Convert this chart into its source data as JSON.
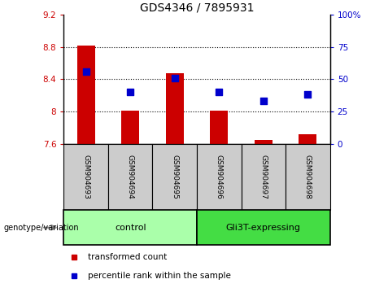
{
  "title": "GDS4346 / 7895931",
  "samples": [
    "GSM904693",
    "GSM904694",
    "GSM904695",
    "GSM904696",
    "GSM904697",
    "GSM904698"
  ],
  "bar_values": [
    8.82,
    8.01,
    8.47,
    8.01,
    7.65,
    7.72
  ],
  "bar_bottom": 7.6,
  "percentile_values": [
    56,
    40,
    51,
    40,
    33,
    38
  ],
  "bar_color": "#cc0000",
  "dot_color": "#0000cc",
  "ylim_left": [
    7.6,
    9.2
  ],
  "ylim_right": [
    0,
    100
  ],
  "yticks_left": [
    7.6,
    8.0,
    8.4,
    8.8,
    9.2
  ],
  "ytick_labels_left": [
    "7.6",
    "8",
    "8.4",
    "8.8",
    "9.2"
  ],
  "yticks_right": [
    0,
    25,
    50,
    75,
    100
  ],
  "ytick_labels_right": [
    "0",
    "25",
    "50",
    "75",
    "100%"
  ],
  "hgrid_lines": [
    8.0,
    8.4,
    8.8
  ],
  "groups": [
    {
      "label": "control",
      "indices": [
        0,
        1,
        2
      ],
      "color": "#aaffaa"
    },
    {
      "label": "Gli3T-expressing",
      "indices": [
        3,
        4,
        5
      ],
      "color": "#44dd44"
    }
  ],
  "legend_items": [
    {
      "label": "transformed count",
      "color": "#cc0000"
    },
    {
      "label": "percentile rank within the sample",
      "color": "#0000cc"
    }
  ],
  "genotype_label": "genotype/variation",
  "tick_color_left": "#cc0000",
  "tick_color_right": "#0000cc",
  "bar_width": 0.4,
  "dot_size": 35,
  "label_box_color": "#cccccc",
  "group_border_color": "#000000"
}
